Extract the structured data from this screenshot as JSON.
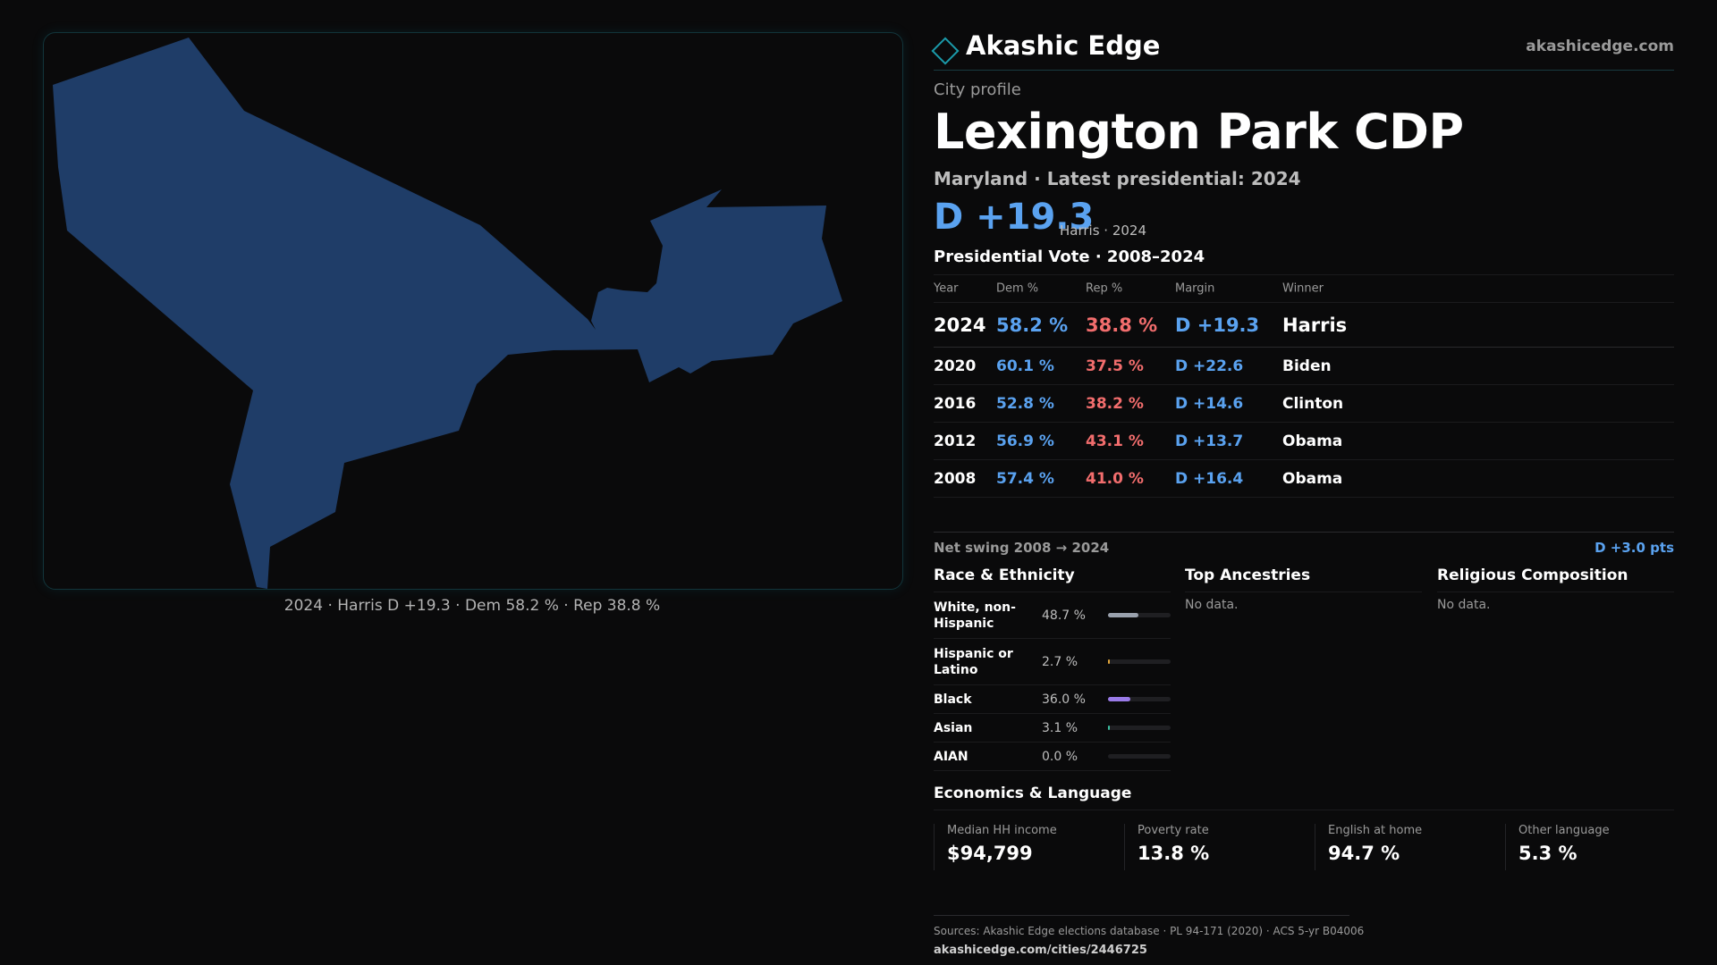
{
  "map": {
    "caption": "2024 · Harris D +19.3 · Dem 58.2 % · Rep 38.8 %",
    "fill_color": "#1f3d68"
  },
  "brand": {
    "name": "Akashic Edge",
    "url": "akashicedge.com",
    "logo_icon": "diamond-outline-icon",
    "accent_color": "#1b9aaa"
  },
  "profile": {
    "label": "City profile",
    "title": "Lexington Park CDP",
    "subtitle": "Maryland · Latest presidential: 2024",
    "headline_margin": "D +19.3",
    "headline_note": "Harris · 2024"
  },
  "votes": {
    "heading": "Presidential Vote · 2008–2024",
    "columns": [
      "Year",
      "Dem %",
      "Rep %",
      "Margin",
      "Winner"
    ],
    "rows": [
      {
        "year": "2024",
        "dem": "58.2 %",
        "rep": "38.8 %",
        "margin": "D +19.3",
        "winner": "Harris"
      },
      {
        "year": "2020",
        "dem": "60.1 %",
        "rep": "37.5 %",
        "margin": "D +22.6",
        "winner": "Biden"
      },
      {
        "year": "2016",
        "dem": "52.8 %",
        "rep": "38.2 %",
        "margin": "D +14.6",
        "winner": "Clinton"
      },
      {
        "year": "2012",
        "dem": "56.9 %",
        "rep": "43.1 %",
        "margin": "D +13.7",
        "winner": "Obama"
      },
      {
        "year": "2008",
        "dem": "57.4 %",
        "rep": "41.0 %",
        "margin": "D +16.4",
        "winner": "Obama"
      }
    ],
    "dem_color": "#5aa2f0",
    "rep_color": "#f26d6d"
  },
  "swing": {
    "label": "Net swing 2008 → 2024",
    "value": "D +3.0 pts"
  },
  "race": {
    "title": "Race & Ethnicity",
    "rows": [
      {
        "label": "White, non-Hispanic",
        "value": "48.7 %",
        "pct": 48.7,
        "color": "#9aa1ad"
      },
      {
        "label": "Hispanic or Latino",
        "value": "2.7 %",
        "pct": 2.7,
        "color": "#e0a43a"
      },
      {
        "label": "Black",
        "value": "36.0 %",
        "pct": 36.0,
        "color": "#9a7be8"
      },
      {
        "label": "Asian",
        "value": "3.1 %",
        "pct": 3.1,
        "color": "#3bbfa0"
      },
      {
        "label": "AIAN",
        "value": "0.0 %",
        "pct": 0.0,
        "color": "#c77a4a"
      }
    ]
  },
  "ancestries": {
    "title": "Top Ancestries",
    "empty": "No data."
  },
  "religion": {
    "title": "Religious Composition",
    "empty": "No data."
  },
  "economics": {
    "title": "Economics & Language",
    "cards": [
      {
        "label": "Median HH income",
        "value": "$94,799"
      },
      {
        "label": "Poverty rate",
        "value": "13.8 %"
      },
      {
        "label": "English at home",
        "value": "94.7 %"
      },
      {
        "label": "Other language",
        "value": "5.3 %"
      }
    ]
  },
  "footer": {
    "sources": "Sources: Akashic Edge elections database · PL 94-171 (2020) · ACS 5-yr B04006",
    "url": "akashicedge.com/cities/2446725"
  }
}
